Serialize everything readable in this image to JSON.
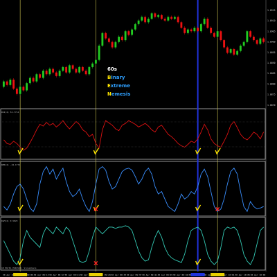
{
  "brand": {
    "line1": "60s",
    "words": [
      {
        "initial": "B",
        "rest": "inary"
      },
      {
        "initial": "E",
        "rest": "xtreme"
      },
      {
        "initial": "N",
        "rest": "emesis"
      }
    ]
  },
  "colors": {
    "background": "#000000",
    "bull_candle": "#22cc22",
    "bear_candle": "#ee1111",
    "panel1_line": "#dd1111",
    "panel2_line": "#3a8fff",
    "panel3_line": "#33c9b4",
    "signal_check": "#ffe600",
    "signal_cross": "#ff2222",
    "cursor_line_yellow": "#d8cf55",
    "cursor_line_blue": "#2233dd"
  },
  "panels": [
    {
      "label": "RSI(4) 52.7714"
    },
    {
      "label": "WPR(4) -44.1772"
    },
    {
      "label": "DeM(4) 0.5823"
    }
  ],
  "price_axis": [
    "1.0915",
    "1.0910",
    "1.0905",
    "1.0900",
    "1.0895",
    "1.0890",
    "1.0885",
    "1.0880",
    "1.0875",
    "1.0870"
  ],
  "time_axis": [
    "30 Apr 2018",
    "30 Apr 09:09",
    "30 Apr 09:13",
    "30 Apr 09:17",
    "30 Apr 09:21",
    "30 Apr 09:25",
    "30 Apr 09:29",
    "30 Apr 09:33",
    "30 Apr 09:37",
    "30 Apr 09:41",
    "30 Apr 09:45",
    "30 Apr 09:49",
    "30 Apr 09:53",
    "30 Apr 09:57",
    "30 Apr 10:01",
    "30 Apr 10:05",
    "30 Apr 10:09"
  ],
  "footer_text": "10 PR/PL EUR/USD, Vizualbars",
  "chart_data": {
    "type": "line",
    "price_candles": [
      [
        1.0872,
        1.0875
      ],
      [
        1.0875,
        1.0873
      ],
      [
        1.0873,
        1.0876
      ],
      [
        1.0876,
        1.0871
      ],
      [
        1.0871,
        1.0868
      ],
      [
        1.0868,
        1.0872
      ],
      [
        1.0872,
        1.087
      ],
      [
        1.087,
        1.0874
      ],
      [
        1.0874,
        1.0877
      ],
      [
        1.0877,
        1.0875
      ],
      [
        1.0875,
        1.0879
      ],
      [
        1.0879,
        1.0877
      ],
      [
        1.0877,
        1.0881
      ],
      [
        1.0881,
        1.0879
      ],
      [
        1.0879,
        1.0882
      ],
      [
        1.0882,
        1.088
      ],
      [
        1.088,
        1.0878
      ],
      [
        1.0878,
        1.0881
      ],
      [
        1.0881,
        1.0883
      ],
      [
        1.0883,
        1.088
      ],
      [
        1.088,
        1.0884
      ],
      [
        1.0884,
        1.0882
      ],
      [
        1.0882,
        1.088
      ],
      [
        1.088,
        1.0883
      ],
      [
        1.0883,
        1.0881
      ],
      [
        1.0881,
        1.0879
      ],
      [
        1.0879,
        1.0883
      ],
      [
        1.0883,
        1.0885
      ],
      [
        1.0885,
        1.0887
      ],
      [
        1.0887,
        1.0895
      ],
      [
        1.0895,
        1.0902
      ],
      [
        1.0902,
        1.0899
      ],
      [
        1.0899,
        1.0897
      ],
      [
        1.0897,
        1.0894
      ],
      [
        1.0894,
        1.0897
      ],
      [
        1.0897,
        1.09
      ],
      [
        1.09,
        1.0898
      ],
      [
        1.0898,
        1.0903
      ],
      [
        1.0903,
        1.0901
      ],
      [
        1.0901,
        1.0904
      ],
      [
        1.0904,
        1.0907
      ],
      [
        1.0907,
        1.0909
      ],
      [
        1.0909,
        1.0911
      ],
      [
        1.0911,
        1.0908
      ],
      [
        1.0908,
        1.091
      ],
      [
        1.091,
        1.0913
      ],
      [
        1.0913,
        1.0911
      ],
      [
        1.0911,
        1.0912
      ],
      [
        1.0912,
        1.091
      ],
      [
        1.091,
        1.0909
      ],
      [
        1.0909,
        1.0911
      ],
      [
        1.0911,
        1.091
      ],
      [
        1.091,
        1.0911
      ],
      [
        1.0911,
        1.0908
      ],
      [
        1.0908,
        1.0905
      ],
      [
        1.0905,
        1.0902
      ],
      [
        1.0902,
        1.0904
      ],
      [
        1.0904,
        1.0903
      ],
      [
        1.0903,
        1.0905
      ],
      [
        1.0905,
        1.0903
      ],
      [
        1.0903,
        1.0907
      ],
      [
        1.0907,
        1.091
      ],
      [
        1.091,
        1.0905
      ],
      [
        1.0905,
        1.0902
      ],
      [
        1.0902,
        1.09
      ],
      [
        1.09,
        1.0903
      ],
      [
        1.0903,
        1.0898
      ],
      [
        1.0898,
        1.0894
      ],
      [
        1.0894,
        1.0891
      ],
      [
        1.0891,
        1.0893
      ],
      [
        1.0893,
        1.089
      ],
      [
        1.089,
        1.0892
      ],
      [
        1.0892,
        1.0895
      ],
      [
        1.0895,
        1.0897
      ],
      [
        1.0897,
        1.0903
      ],
      [
        1.0903,
        1.09
      ],
      [
        1.09,
        1.0898
      ],
      [
        1.0898,
        1.0896
      ],
      [
        1.0896,
        1.0899
      ],
      [
        1.0899,
        1.0897
      ]
    ],
    "rsi": [
      38,
      30,
      28,
      35,
      30,
      22,
      15,
      20,
      32,
      45,
      60,
      72,
      68,
      76,
      70,
      74,
      66,
      72,
      80,
      70,
      62,
      70,
      78,
      72,
      60,
      55,
      45,
      50,
      30,
      20,
      60,
      80,
      75,
      70,
      62,
      58,
      70,
      74,
      80,
      76,
      72,
      66,
      70,
      74,
      68,
      60,
      55,
      66,
      70,
      60,
      50,
      45,
      38,
      30,
      25,
      22,
      28,
      35,
      32,
      40,
      55,
      72,
      60,
      40,
      30,
      25,
      22,
      35,
      50,
      70,
      78,
      65,
      50,
      42,
      38,
      45,
      55,
      50,
      40,
      55
    ],
    "wpr": [
      -85,
      -92,
      -80,
      -60,
      -45,
      -40,
      -50,
      -70,
      -88,
      -95,
      -80,
      -40,
      -15,
      -5,
      -20,
      -10,
      -30,
      -18,
      -8,
      -35,
      -55,
      -65,
      -60,
      -50,
      -70,
      -85,
      -95,
      -75,
      -40,
      -10,
      -5,
      -12,
      -35,
      -50,
      -45,
      -30,
      -15,
      -10,
      -8,
      -12,
      -25,
      -40,
      -30,
      -15,
      -8,
      -20,
      -45,
      -60,
      -55,
      -70,
      -85,
      -90,
      -95,
      -80,
      -60,
      -70,
      -65,
      -55,
      -60,
      -45,
      -20,
      -10,
      -25,
      -55,
      -85,
      -95,
      -90,
      -70,
      -40,
      -15,
      -8,
      -20,
      -55,
      -85,
      -95,
      -75,
      -85,
      -90,
      -88,
      -85
    ],
    "dem": [
      0.4,
      0.3,
      0.2,
      0.1,
      0.05,
      0.15,
      0.4,
      0.55,
      0.45,
      0.4,
      0.35,
      0.3,
      0.5,
      0.6,
      0.55,
      0.5,
      0.6,
      0.55,
      0.5,
      0.6,
      0.55,
      0.4,
      0.25,
      0.1,
      0.08,
      0.1,
      0.25,
      0.45,
      0.6,
      0.55,
      0.5,
      0.55,
      0.6,
      0.6,
      0.58,
      0.6,
      0.6,
      0.62,
      0.6,
      0.55,
      0.4,
      0.25,
      0.15,
      0.1,
      0.12,
      0.3,
      0.45,
      0.55,
      0.45,
      0.3,
      0.2,
      0.15,
      0.12,
      0.1,
      0.08,
      0.2,
      0.4,
      0.55,
      0.58,
      0.6,
      0.55,
      0.4,
      0.2,
      0.1,
      0.05,
      0.1,
      0.3,
      0.55,
      0.6,
      0.58,
      0.6,
      0.55,
      0.4,
      0.2,
      0.1,
      0.05,
      0.15,
      0.35,
      0.55,
      0.6
    ],
    "signals": [
      {
        "index": 5,
        "type": "check",
        "panels": [
          0,
          1,
          2
        ]
      },
      {
        "index": 28,
        "type": "check",
        "panels": [
          0,
          1
        ]
      },
      {
        "index": 28,
        "type": "cross",
        "panels": [
          1,
          2
        ]
      },
      {
        "index": 59,
        "type": "check",
        "panels": [
          0,
          1,
          2
        ]
      },
      {
        "index": 65,
        "type": "check",
        "panels": [
          0
        ]
      },
      {
        "index": 65,
        "type": "cross",
        "panels": [
          1
        ]
      }
    ],
    "cursor_lines": [
      {
        "index": 5,
        "color": "yellow"
      },
      {
        "index": 28,
        "color": "yellow"
      },
      {
        "index": 59,
        "color": "blue"
      },
      {
        "index": 65,
        "color": "yellow"
      }
    ]
  }
}
